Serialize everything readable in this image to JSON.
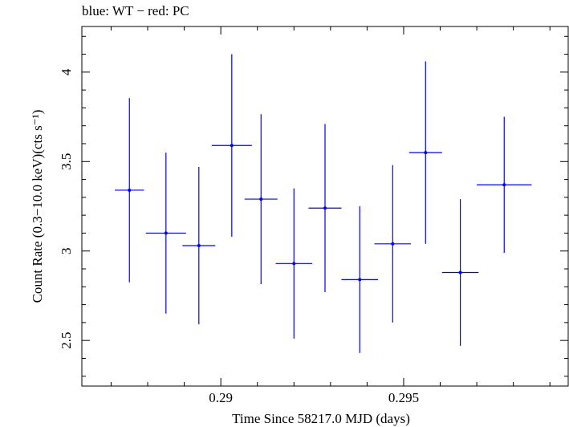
{
  "chart_data": {
    "type": "scatter",
    "title": "blue: WT − red: PC",
    "xlabel": "Time Since 58217.0 MJD (days)",
    "ylabel": "Count Rate (0.3−10.0 keV)(cts s⁻¹)",
    "xlim": [
      0.2862,
      0.2995
    ],
    "ylim": [
      2.245,
      4.255
    ],
    "xticks": [
      0.29,
      0.295
    ],
    "xtick_labels": [
      "0.29",
      "0.295"
    ],
    "yticks": [
      2.5,
      3,
      3.5,
      4
    ],
    "ytick_labels": [
      "2.5",
      "3",
      "3.5",
      "4"
    ],
    "grid": false,
    "series": [
      {
        "name": "WT",
        "color": "#0000ff",
        "points": [
          {
            "x": 0.2875,
            "xerr": 0.0004,
            "y": 3.34,
            "yerr": 0.515
          },
          {
            "x": 0.2885,
            "xerr": 0.00055,
            "y": 3.1,
            "yerr": 0.45
          },
          {
            "x": 0.2894,
            "xerr": 0.00045,
            "y": 3.03,
            "yerr": 0.44
          },
          {
            "x": 0.2903,
            "xerr": 0.00055,
            "y": 3.59,
            "yerr": 0.51
          },
          {
            "x": 0.2911,
            "xerr": 0.00045,
            "y": 3.29,
            "yerr": 0.475
          },
          {
            "x": 0.292,
            "xerr": 0.0005,
            "y": 2.93,
            "yerr": 0.42
          },
          {
            "x": 0.29285,
            "xerr": 0.00045,
            "y": 3.24,
            "yerr": 0.47
          },
          {
            "x": 0.2938,
            "xerr": 0.0005,
            "y": 2.84,
            "yerr": 0.41
          },
          {
            "x": 0.2947,
            "xerr": 0.0005,
            "y": 3.04,
            "yerr": 0.44
          },
          {
            "x": 0.2956,
            "xerr": 0.00045,
            "y": 3.55,
            "yerr": 0.51
          },
          {
            "x": 0.29655,
            "xerr": 0.0005,
            "y": 2.88,
            "yerr": 0.41
          },
          {
            "x": 0.29775,
            "xerr": 0.00075,
            "y": 3.37,
            "yerr": 0.38
          }
        ]
      }
    ]
  }
}
